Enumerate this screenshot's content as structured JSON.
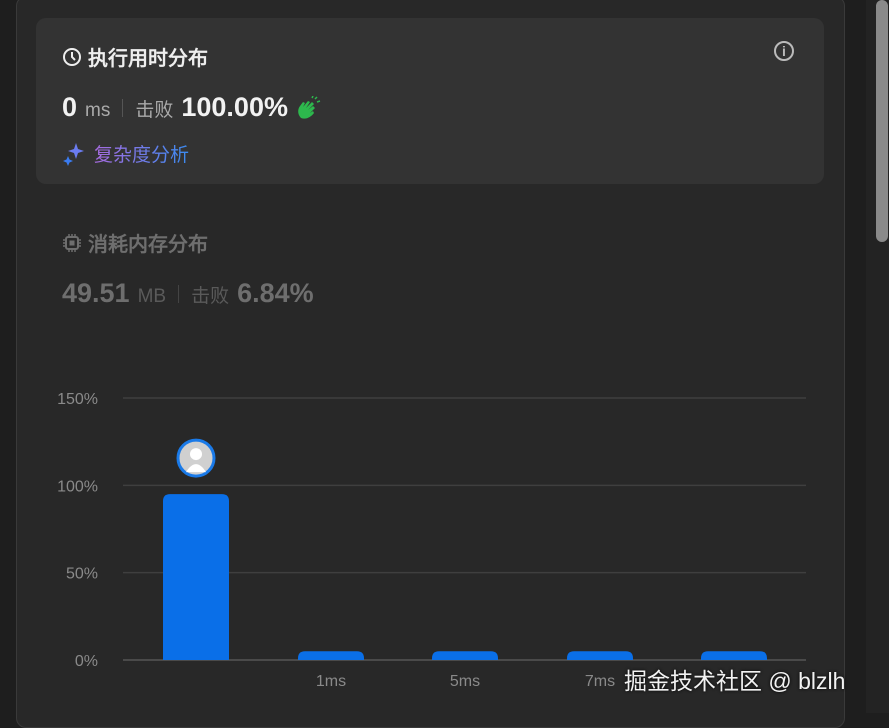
{
  "runtime": {
    "title": "执行用时分布",
    "value": "0",
    "unit": "ms",
    "beats_label": "击败",
    "beats_value": "100.00%",
    "complexity_link": "复杂度分析"
  },
  "memory": {
    "title": "消耗内存分布",
    "value": "49.51",
    "unit": "MB",
    "beats_label": "击败",
    "beats_value": "6.84%"
  },
  "icons": {
    "runtime": "clock-icon",
    "info": "info-icon",
    "clap": "clapping-hands-icon",
    "sparkle": "sparkle-icon",
    "memory": "chip-icon",
    "avatar": "user-avatar-icon"
  },
  "colors": {
    "bar": "#0a6fe8",
    "clap": "#2db84d",
    "card": "#333333",
    "background": "#282828"
  },
  "watermark": "掘金技术社区 @ blzlh",
  "chart_data": {
    "type": "bar",
    "categories": [
      "",
      "1ms",
      "5ms",
      "7ms",
      ""
    ],
    "values": [
      95,
      5,
      5,
      5,
      5
    ],
    "ylim": [
      0,
      150
    ],
    "yticks": [
      "0%",
      "50%",
      "100%",
      "150%"
    ],
    "ytick_values": [
      0,
      50,
      100,
      150
    ],
    "grid": true,
    "highlight_index": 0
  }
}
